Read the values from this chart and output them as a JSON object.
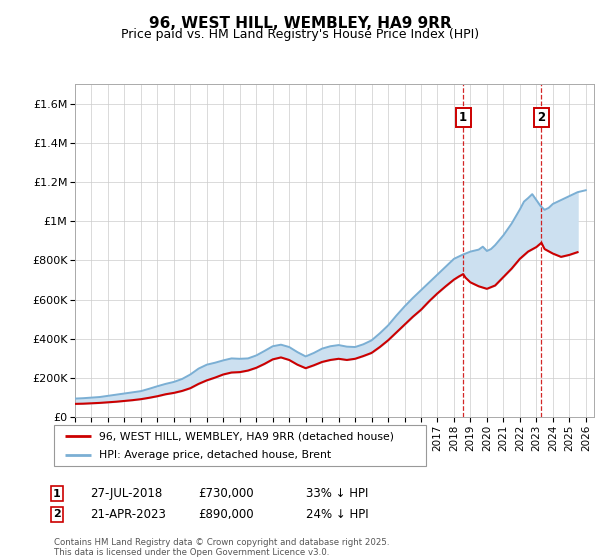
{
  "title": "96, WEST HILL, WEMBLEY, HA9 9RR",
  "subtitle": "Price paid vs. HM Land Registry's House Price Index (HPI)",
  "footnote": "Contains HM Land Registry data © Crown copyright and database right 2025.\nThis data is licensed under the Open Government Licence v3.0.",
  "legend_line1": "96, WEST HILL, WEMBLEY, HA9 9RR (detached house)",
  "legend_line2": "HPI: Average price, detached house, Brent",
  "annotation1": {
    "label": "1",
    "date": "27-JUL-2018",
    "price": "£730,000",
    "hpi": "33% ↓ HPI"
  },
  "annotation2": {
    "label": "2",
    "date": "21-APR-2023",
    "price": "£890,000",
    "hpi": "24% ↓ HPI"
  },
  "ylim": [
    0,
    1700000
  ],
  "xlim_start": 1995.0,
  "xlim_end": 2026.5,
  "red_color": "#cc0000",
  "blue_color": "#7bafd4",
  "shading_color": "#cce0f0",
  "vline_color": "#cc0000",
  "ann1_x": 2018.56,
  "ann2_x": 2023.31,
  "hpi_series": [
    [
      1995.0,
      95000
    ],
    [
      1995.5,
      97000
    ],
    [
      1996.0,
      100000
    ],
    [
      1996.5,
      103000
    ],
    [
      1997.0,
      109000
    ],
    [
      1997.5,
      115000
    ],
    [
      1998.0,
      121000
    ],
    [
      1998.5,
      127000
    ],
    [
      1999.0,
      133000
    ],
    [
      1999.5,
      145000
    ],
    [
      2000.0,
      158000
    ],
    [
      2000.5,
      170000
    ],
    [
      2001.0,
      180000
    ],
    [
      2001.5,
      195000
    ],
    [
      2002.0,
      218000
    ],
    [
      2002.5,
      248000
    ],
    [
      2003.0,
      268000
    ],
    [
      2003.5,
      278000
    ],
    [
      2004.0,
      290000
    ],
    [
      2004.5,
      300000
    ],
    [
      2005.0,
      298000
    ],
    [
      2005.5,
      300000
    ],
    [
      2006.0,
      315000
    ],
    [
      2006.5,
      338000
    ],
    [
      2007.0,
      362000
    ],
    [
      2007.5,
      370000
    ],
    [
      2008.0,
      358000
    ],
    [
      2008.5,
      332000
    ],
    [
      2009.0,
      310000
    ],
    [
      2009.5,
      328000
    ],
    [
      2010.0,
      350000
    ],
    [
      2010.5,
      362000
    ],
    [
      2011.0,
      368000
    ],
    [
      2011.5,
      360000
    ],
    [
      2012.0,
      358000
    ],
    [
      2012.5,
      372000
    ],
    [
      2013.0,
      392000
    ],
    [
      2013.5,
      428000
    ],
    [
      2014.0,
      468000
    ],
    [
      2014.5,
      518000
    ],
    [
      2015.0,
      565000
    ],
    [
      2015.5,
      608000
    ],
    [
      2016.0,
      648000
    ],
    [
      2016.5,
      688000
    ],
    [
      2017.0,
      728000
    ],
    [
      2017.5,
      768000
    ],
    [
      2018.0,
      808000
    ],
    [
      2018.5,
      828000
    ],
    [
      2019.0,
      845000
    ],
    [
      2019.5,
      855000
    ],
    [
      2019.75,
      870000
    ],
    [
      2020.0,
      848000
    ],
    [
      2020.25,
      858000
    ],
    [
      2020.5,
      878000
    ],
    [
      2021.0,
      928000
    ],
    [
      2021.5,
      988000
    ],
    [
      2022.0,
      1060000
    ],
    [
      2022.25,
      1100000
    ],
    [
      2022.5,
      1118000
    ],
    [
      2022.75,
      1138000
    ],
    [
      2023.0,
      1108000
    ],
    [
      2023.25,
      1078000
    ],
    [
      2023.5,
      1058000
    ],
    [
      2023.75,
      1068000
    ],
    [
      2024.0,
      1088000
    ],
    [
      2024.5,
      1108000
    ],
    [
      2025.0,
      1128000
    ],
    [
      2025.5,
      1148000
    ],
    [
      2026.0,
      1158000
    ]
  ],
  "price_series": [
    [
      1995.0,
      68000
    ],
    [
      1995.5,
      69000
    ],
    [
      1996.0,
      71000
    ],
    [
      1996.5,
      73000
    ],
    [
      1997.0,
      76000
    ],
    [
      1997.5,
      79000
    ],
    [
      1998.0,
      83000
    ],
    [
      1998.5,
      87000
    ],
    [
      1999.0,
      92000
    ],
    [
      1999.5,
      99000
    ],
    [
      2000.0,
      107000
    ],
    [
      2000.5,
      117000
    ],
    [
      2001.0,
      124000
    ],
    [
      2001.5,
      134000
    ],
    [
      2002.0,
      148000
    ],
    [
      2002.5,
      170000
    ],
    [
      2003.0,
      188000
    ],
    [
      2003.5,
      202000
    ],
    [
      2004.0,
      218000
    ],
    [
      2004.5,
      228000
    ],
    [
      2005.0,
      230000
    ],
    [
      2005.5,
      238000
    ],
    [
      2006.0,
      252000
    ],
    [
      2006.5,
      272000
    ],
    [
      2007.0,
      295000
    ],
    [
      2007.5,
      305000
    ],
    [
      2008.0,
      292000
    ],
    [
      2008.5,
      268000
    ],
    [
      2009.0,
      250000
    ],
    [
      2009.5,
      265000
    ],
    [
      2010.0,
      282000
    ],
    [
      2010.5,
      292000
    ],
    [
      2011.0,
      298000
    ],
    [
      2011.5,
      292000
    ],
    [
      2012.0,
      298000
    ],
    [
      2012.5,
      312000
    ],
    [
      2013.0,
      328000
    ],
    [
      2013.5,
      358000
    ],
    [
      2014.0,
      392000
    ],
    [
      2014.5,
      432000
    ],
    [
      2015.0,
      472000
    ],
    [
      2015.5,
      512000
    ],
    [
      2016.0,
      548000
    ],
    [
      2016.5,
      592000
    ],
    [
      2017.0,
      632000
    ],
    [
      2017.5,
      668000
    ],
    [
      2018.0,
      702000
    ],
    [
      2018.3,
      718000
    ],
    [
      2018.56,
      730000
    ],
    [
      2018.7,
      712000
    ],
    [
      2019.0,
      688000
    ],
    [
      2019.5,
      668000
    ],
    [
      2020.0,
      655000
    ],
    [
      2020.5,
      672000
    ],
    [
      2021.0,
      715000
    ],
    [
      2021.5,
      758000
    ],
    [
      2022.0,
      808000
    ],
    [
      2022.5,
      845000
    ],
    [
      2023.0,
      868000
    ],
    [
      2023.31,
      890000
    ],
    [
      2023.5,
      858000
    ],
    [
      2024.0,
      835000
    ],
    [
      2024.5,
      818000
    ],
    [
      2025.0,
      828000
    ],
    [
      2025.5,
      842000
    ]
  ]
}
